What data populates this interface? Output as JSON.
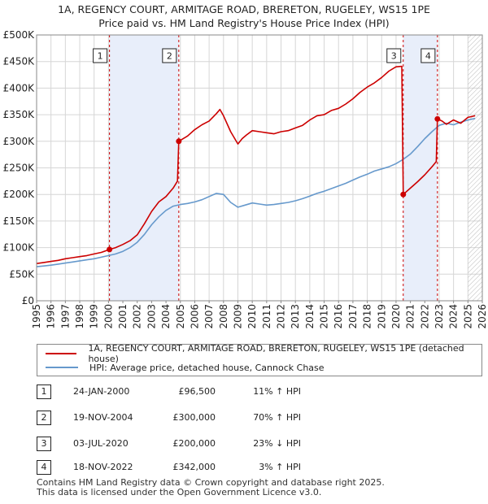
{
  "title_line1": "1A, REGENCY COURT, ARMITAGE ROAD, BRERETON, RUGELEY, WS15 1PE",
  "title_line2": "Price paid vs. HM Land Registry's House Price Index (HPI)",
  "chart_data": {
    "type": "line",
    "xlabel": "",
    "ylabel": "",
    "xlim": [
      1995,
      2026
    ],
    "ylim": [
      0,
      500000
    ],
    "x_ticks": [
      1995,
      1996,
      1997,
      1998,
      1999,
      2000,
      2001,
      2002,
      2003,
      2004,
      2005,
      2006,
      2007,
      2008,
      2009,
      2010,
      2011,
      2012,
      2013,
      2014,
      2015,
      2016,
      2017,
      2018,
      2019,
      2020,
      2021,
      2022,
      2023,
      2024,
      2025,
      2026
    ],
    "y_ticks": [
      0,
      50000,
      100000,
      150000,
      200000,
      250000,
      300000,
      350000,
      400000,
      450000,
      500000
    ],
    "y_tick_labels": [
      "£0",
      "£50K",
      "£100K",
      "£150K",
      "£200K",
      "£250K",
      "£300K",
      "£350K",
      "£400K",
      "£450K",
      "£500K"
    ],
    "grid": true,
    "series": [
      {
        "name": "1A, REGENCY COURT, ARMITAGE ROAD, BRERETON, RUGELEY, WS15 1PE (detached house)",
        "color": "#cc0000",
        "x": [
          1995.0,
          1995.5,
          1996.0,
          1996.5,
          1997.0,
          1997.5,
          1998.0,
          1998.5,
          1999.0,
          1999.5,
          2000.07,
          2000.5,
          2001.0,
          2001.5,
          2002.0,
          2002.5,
          2003.0,
          2003.5,
          2004.0,
          2004.5,
          2004.8,
          2004.89,
          2005.5,
          2006.0,
          2006.5,
          2007.0,
          2007.5,
          2007.75,
          2008.0,
          2008.5,
          2009.0,
          2009.3,
          2009.6,
          2010.0,
          2010.5,
          2011.0,
          2011.5,
          2012.0,
          2012.5,
          2013.0,
          2013.5,
          2014.0,
          2014.5,
          2015.0,
          2015.5,
          2016.0,
          2016.5,
          2017.0,
          2017.5,
          2018.0,
          2018.5,
          2019.0,
          2019.5,
          2020.0,
          2020.4,
          2020.5,
          2021.0,
          2021.5,
          2022.0,
          2022.5,
          2022.8,
          2022.88,
          2023.2,
          2023.5,
          2024.0,
          2024.5,
          2025.0,
          2025.5
        ],
        "values": [
          70000,
          72000,
          74000,
          76000,
          79000,
          81000,
          83000,
          85000,
          88000,
          91000,
          96500,
          100000,
          106000,
          113000,
          124000,
          145000,
          168000,
          186000,
          196000,
          212000,
          225000,
          300000,
          310000,
          322000,
          331000,
          338000,
          352000,
          360000,
          348000,
          318000,
          295000,
          305000,
          312000,
          320000,
          318000,
          316000,
          314000,
          318000,
          320000,
          325000,
          330000,
          340000,
          348000,
          350000,
          358000,
          362000,
          370000,
          380000,
          392000,
          402000,
          410000,
          420000,
          432000,
          440000,
          441000,
          200000,
          212000,
          224000,
          237000,
          252000,
          262000,
          342000,
          338000,
          332000,
          340000,
          334000,
          345000,
          348000
        ]
      },
      {
        "name": "HPI: Average price, detached house, Cannock Chase",
        "color": "#6699cc",
        "x": [
          1995.0,
          1995.5,
          1996.0,
          1996.5,
          1997.0,
          1997.5,
          1998.0,
          1998.5,
          1999.0,
          1999.5,
          2000.0,
          2000.5,
          2001.0,
          2001.5,
          2002.0,
          2002.5,
          2003.0,
          2003.5,
          2004.0,
          2004.5,
          2005.0,
          2005.5,
          2006.0,
          2006.5,
          2007.0,
          2007.5,
          2008.0,
          2008.5,
          2009.0,
          2009.5,
          2010.0,
          2010.5,
          2011.0,
          2011.5,
          2012.0,
          2012.5,
          2013.0,
          2013.5,
          2014.0,
          2014.5,
          2015.0,
          2015.5,
          2016.0,
          2016.5,
          2017.0,
          2017.5,
          2018.0,
          2018.5,
          2019.0,
          2019.5,
          2020.0,
          2020.5,
          2021.0,
          2021.5,
          2022.0,
          2022.5,
          2023.0,
          2023.5,
          2024.0,
          2024.5,
          2025.0,
          2025.5
        ],
        "values": [
          64000,
          65500,
          67000,
          69000,
          71000,
          73000,
          75000,
          77000,
          79000,
          82000,
          85000,
          88000,
          93000,
          100000,
          110000,
          125000,
          143000,
          158000,
          170000,
          178000,
          181000,
          183000,
          186000,
          190000,
          196000,
          202000,
          200000,
          185000,
          176000,
          180000,
          184000,
          182000,
          180000,
          181000,
          183000,
          185000,
          188000,
          192000,
          197000,
          202000,
          206000,
          211000,
          216000,
          221000,
          227000,
          233000,
          238000,
          244000,
          248000,
          252000,
          258000,
          266000,
          276000,
          290000,
          305000,
          318000,
          330000,
          334000,
          331000,
          336000,
          340000,
          343000
        ]
      }
    ],
    "sales": [
      {
        "num": "1",
        "x": 2000.07,
        "price": 96500
      },
      {
        "num": "2",
        "x": 2004.89,
        "price": 300000
      },
      {
        "num": "3",
        "x": 2020.5,
        "price": 200000
      },
      {
        "num": "4",
        "x": 2022.88,
        "price": 342000
      }
    ],
    "shaded_periods": [
      [
        2000.07,
        2004.89
      ],
      [
        2020.5,
        2022.88
      ]
    ],
    "forecast_hatch_from": 2025.0
  },
  "legend": {
    "red_label": "1A, REGENCY COURT, ARMITAGE ROAD, BRERETON, RUGELEY, WS15 1PE (detached house)",
    "blue_label": "HPI: Average price, detached house, Cannock Chase"
  },
  "transactions": [
    {
      "num": "1",
      "date": "24-JAN-2000",
      "price": "£96,500",
      "hpi": "11% ↑ HPI"
    },
    {
      "num": "2",
      "date": "19-NOV-2004",
      "price": "£300,000",
      "hpi": "70% ↑ HPI"
    },
    {
      "num": "3",
      "date": "03-JUL-2020",
      "price": "£200,000",
      "hpi": "23% ↓ HPI"
    },
    {
      "num": "4",
      "date": "18-NOV-2022",
      "price": "£342,000",
      "hpi": "3% ↑ HPI"
    }
  ],
  "footer_line1": "Contains HM Land Registry data © Crown copyright and database right 2025.",
  "footer_line2": "This data is licensed under the Open Government Licence v3.0."
}
